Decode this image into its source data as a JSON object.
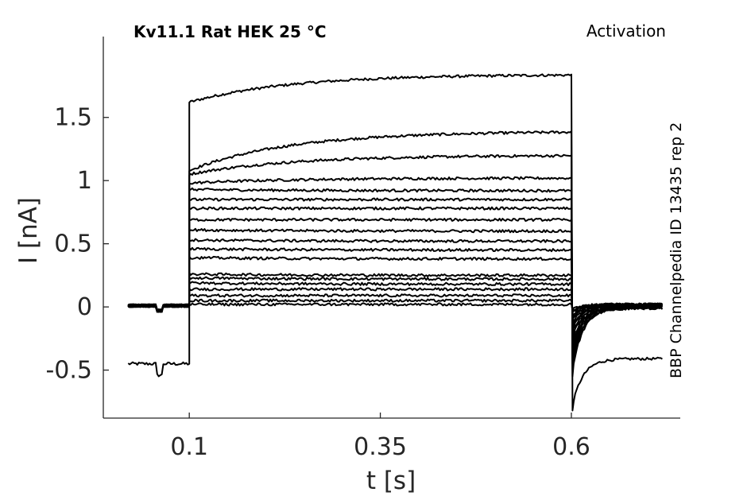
{
  "chart_data": {
    "type": "line",
    "title": "Kv11.1  Rat  HEK  25 °C",
    "subtitle": "Activation",
    "side_label": "BBP Channelpedia ID 13435 rep 2",
    "xlabel": "t [s]",
    "ylabel": "I [nA]",
    "xlim": [
      -0.0125,
      0.7425
    ],
    "ylim": [
      -0.88,
      2.14
    ],
    "xticks": [
      0.1,
      0.35,
      0.6
    ],
    "xtick_labels": [
      "0.1",
      "0.35",
      "0.6"
    ],
    "yticks": [
      -0.5,
      0,
      0.5,
      1,
      1.5
    ],
    "ytick_labels": [
      "-0.5",
      "0",
      "0.5",
      "1",
      "1.5"
    ],
    "grid": false,
    "legend": "none",
    "pulse": {
      "start": 0.1,
      "end": 0.6,
      "trace_start": 0.02,
      "trace_end": 0.72
    },
    "traces": [
      {
        "hold": -0.45,
        "on": 1.62,
        "ss": 1.84,
        "tail": -0.82,
        "tail_end": -0.41
      },
      {
        "hold": 0.01,
        "on": 1.08,
        "ss": 1.39,
        "tail": -0.55,
        "tail_end": -0.01
      },
      {
        "hold": 0.01,
        "on": 1.05,
        "ss": 1.2,
        "tail": -0.5,
        "tail_end": -0.01
      },
      {
        "hold": 0.01,
        "on": 0.98,
        "ss": 1.02,
        "tail": -0.45,
        "tail_end": -0.01
      },
      {
        "hold": 0.01,
        "on": 0.93,
        "ss": 0.92,
        "tail": -0.42,
        "tail_end": 0.0
      },
      {
        "hold": 0.01,
        "on": 0.85,
        "ss": 0.85,
        "tail": -0.38,
        "tail_end": 0.0
      },
      {
        "hold": 0.01,
        "on": 0.78,
        "ss": 0.78,
        "tail": -0.34,
        "tail_end": 0.0
      },
      {
        "hold": 0.01,
        "on": 0.69,
        "ss": 0.69,
        "tail": -0.3,
        "tail_end": 0.0
      },
      {
        "hold": 0.01,
        "on": 0.61,
        "ss": 0.6,
        "tail": -0.26,
        "tail_end": 0.01
      },
      {
        "hold": 0.01,
        "on": 0.53,
        "ss": 0.52,
        "tail": -0.22,
        "tail_end": 0.01
      },
      {
        "hold": 0.01,
        "on": 0.46,
        "ss": 0.45,
        "tail": -0.19,
        "tail_end": 0.01
      },
      {
        "hold": 0.01,
        "on": 0.39,
        "ss": 0.38,
        "tail": -0.16,
        "tail_end": 0.01
      },
      {
        "hold": 0.01,
        "on": 0.26,
        "ss": 0.25,
        "tail": -0.13,
        "tail_end": 0.01
      },
      {
        "hold": 0.01,
        "on": 0.23,
        "ss": 0.22,
        "tail": -0.11,
        "tail_end": 0.02
      },
      {
        "hold": 0.01,
        "on": 0.19,
        "ss": 0.18,
        "tail": -0.09,
        "tail_end": 0.02
      },
      {
        "hold": 0.01,
        "on": 0.14,
        "ss": 0.14,
        "tail": -0.07,
        "tail_end": 0.02
      },
      {
        "hold": 0.01,
        "on": 0.09,
        "ss": 0.09,
        "tail": -0.05,
        "tail_end": 0.02
      },
      {
        "hold": 0.01,
        "on": 0.05,
        "ss": 0.05,
        "tail": -0.03,
        "tail_end": 0.02
      },
      {
        "hold": 0.01,
        "on": 0.02,
        "ss": 0.02,
        "tail": -0.01,
        "tail_end": 0.02
      }
    ]
  }
}
